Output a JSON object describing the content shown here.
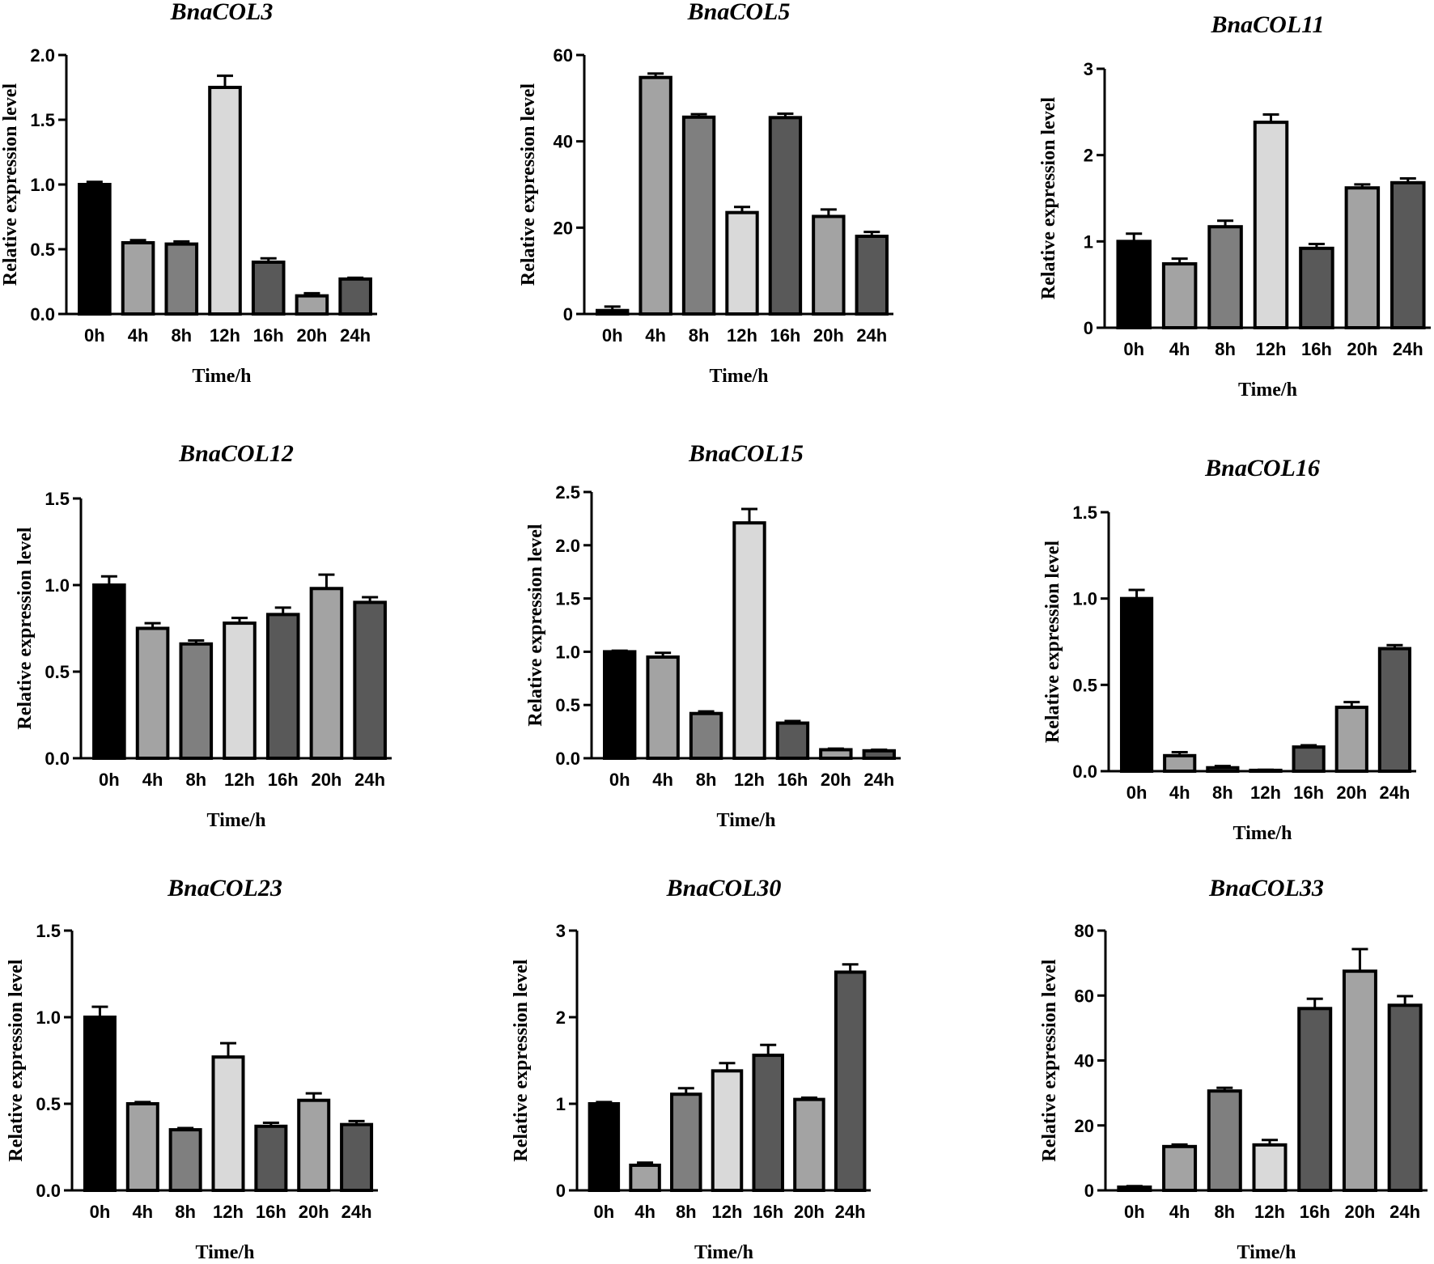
{
  "figure": {
    "n_panels": 9
  },
  "chart_data": [
    {
      "type": "bar",
      "title": "BnaCOL3",
      "categories": [
        "0h",
        "4h",
        "8h",
        "12h",
        "16h",
        "20h",
        "24h"
      ],
      "values": [
        1.0,
        0.55,
        0.54,
        1.75,
        0.4,
        0.14,
        0.27
      ],
      "errors": [
        0.02,
        0.02,
        0.02,
        0.09,
        0.03,
        0.02,
        0.01
      ],
      "ylim": [
        0,
        2.0
      ],
      "yticks": [
        0.0,
        0.5,
        1.0,
        1.5,
        2.0
      ],
      "ytick_labels": [
        "0.0",
        "0.5",
        "1.0",
        "1.5",
        "2.0"
      ],
      "xlabel": "Time/h",
      "ylabel": "Relative expression level"
    },
    {
      "type": "bar",
      "title": "BnaCOL5",
      "categories": [
        "0h",
        "4h",
        "8h",
        "12h",
        "16h",
        "20h",
        "24h"
      ],
      "values": [
        0.8,
        54.8,
        45.6,
        23.5,
        45.5,
        22.6,
        18.0
      ],
      "errors": [
        0.9,
        0.9,
        0.7,
        1.3,
        0.9,
        1.6,
        1.0
      ],
      "ylim": [
        0,
        60
      ],
      "yticks": [
        0,
        20,
        40,
        60
      ],
      "ytick_labels": [
        "0",
        "20",
        "40",
        "60"
      ],
      "xlabel": "Time/h",
      "ylabel": "Relative expression level"
    },
    {
      "type": "bar",
      "title": "BnaCOL11",
      "categories": [
        "0h",
        "4h",
        "8h",
        "12h",
        "16h",
        "20h",
        "24h"
      ],
      "values": [
        1.0,
        0.74,
        1.17,
        2.38,
        0.92,
        1.62,
        1.68
      ],
      "errors": [
        0.09,
        0.06,
        0.07,
        0.09,
        0.05,
        0.04,
        0.05
      ],
      "ylim": [
        0,
        3
      ],
      "yticks": [
        0,
        1,
        2,
        3
      ],
      "ytick_labels": [
        "0",
        "1",
        "2",
        "3"
      ],
      "xlabel": "Time/h",
      "ylabel": "Relative expression level"
    },
    {
      "type": "bar",
      "title": "BnaCOL12",
      "categories": [
        "0h",
        "4h",
        "8h",
        "12h",
        "16h",
        "20h",
        "24h"
      ],
      "values": [
        1.0,
        0.75,
        0.66,
        0.78,
        0.83,
        0.98,
        0.9
      ],
      "errors": [
        0.05,
        0.03,
        0.02,
        0.03,
        0.04,
        0.08,
        0.03
      ],
      "ylim": [
        0,
        1.5
      ],
      "yticks": [
        0.0,
        0.5,
        1.0,
        1.5
      ],
      "ytick_labels": [
        "0.0",
        "0.5",
        "1.0",
        "1.5"
      ],
      "xlabel": "Time/h",
      "ylabel": "Relative expression level"
    },
    {
      "type": "bar",
      "title": "BnaCOL15",
      "categories": [
        "0h",
        "4h",
        "8h",
        "12h",
        "16h",
        "20h",
        "24h"
      ],
      "values": [
        1.0,
        0.95,
        0.42,
        2.21,
        0.33,
        0.08,
        0.07
      ],
      "errors": [
        0.01,
        0.04,
        0.02,
        0.13,
        0.02,
        0.01,
        0.01
      ],
      "ylim": [
        0,
        2.5
      ],
      "yticks": [
        0.0,
        0.5,
        1.0,
        1.5,
        2.0,
        2.5
      ],
      "ytick_labels": [
        "0.0",
        "0.5",
        "1.0",
        "1.5",
        "2.0",
        "2.5"
      ],
      "xlabel": "Time/h",
      "ylabel": "Relative expression level"
    },
    {
      "type": "bar",
      "title": "BnaCOL16",
      "categories": [
        "0h",
        "4h",
        "8h",
        "12h",
        "16h",
        "20h",
        "24h"
      ],
      "values": [
        1.0,
        0.09,
        0.02,
        0.005,
        0.14,
        0.37,
        0.71
      ],
      "errors": [
        0.05,
        0.02,
        0.01,
        0.003,
        0.01,
        0.03,
        0.02
      ],
      "ylim": [
        0,
        1.5
      ],
      "yticks": [
        0.0,
        0.5,
        1.0,
        1.5
      ],
      "ytick_labels": [
        "0.0",
        "0.5",
        "1.0",
        "1.5"
      ],
      "xlabel": "Time/h",
      "ylabel": "Relative expression level"
    },
    {
      "type": "bar",
      "title": "BnaCOL23",
      "categories": [
        "0h",
        "4h",
        "8h",
        "12h",
        "16h",
        "20h",
        "24h"
      ],
      "values": [
        1.0,
        0.5,
        0.35,
        0.77,
        0.37,
        0.52,
        0.38
      ],
      "errors": [
        0.06,
        0.01,
        0.01,
        0.08,
        0.02,
        0.04,
        0.02
      ],
      "ylim": [
        0,
        1.5
      ],
      "yticks": [
        0.0,
        0.5,
        1.0,
        1.5
      ],
      "ytick_labels": [
        "0.0",
        "0.5",
        "1.0",
        "1.5"
      ],
      "xlabel": "Time/h",
      "ylabel": "Relative expression level"
    },
    {
      "type": "bar",
      "title": "BnaCOL30",
      "categories": [
        "0h",
        "4h",
        "8h",
        "12h",
        "16h",
        "20h",
        "24h"
      ],
      "values": [
        1.0,
        0.29,
        1.11,
        1.38,
        1.56,
        1.05,
        2.52
      ],
      "errors": [
        0.02,
        0.03,
        0.07,
        0.09,
        0.12,
        0.02,
        0.09
      ],
      "ylim": [
        0,
        3
      ],
      "yticks": [
        0,
        1,
        2,
        3
      ],
      "ytick_labels": [
        "0",
        "1",
        "2",
        "3"
      ],
      "xlabel": "Time/h",
      "ylabel": "Relative expression level"
    },
    {
      "type": "bar",
      "title": "BnaCOL33",
      "categories": [
        "0h",
        "4h",
        "8h",
        "12h",
        "16h",
        "20h",
        "24h"
      ],
      "values": [
        1.0,
        13.5,
        30.6,
        14.0,
        56.0,
        67.5,
        57.0
      ],
      "errors": [
        0.3,
        0.6,
        1.0,
        1.5,
        3.0,
        6.8,
        2.8
      ],
      "ylim": [
        0,
        80
      ],
      "yticks": [
        0,
        20,
        40,
        60,
        80
      ],
      "ytick_labels": [
        "0",
        "20",
        "40",
        "60",
        "80"
      ],
      "xlabel": "Time/h",
      "ylabel": "Relative expression level"
    }
  ],
  "bar_colors": [
    "#000000",
    "#a3a3a3",
    "#7f7f7f",
    "#d9d9d9",
    "#595959",
    "#a3a3a3",
    "#595959"
  ]
}
